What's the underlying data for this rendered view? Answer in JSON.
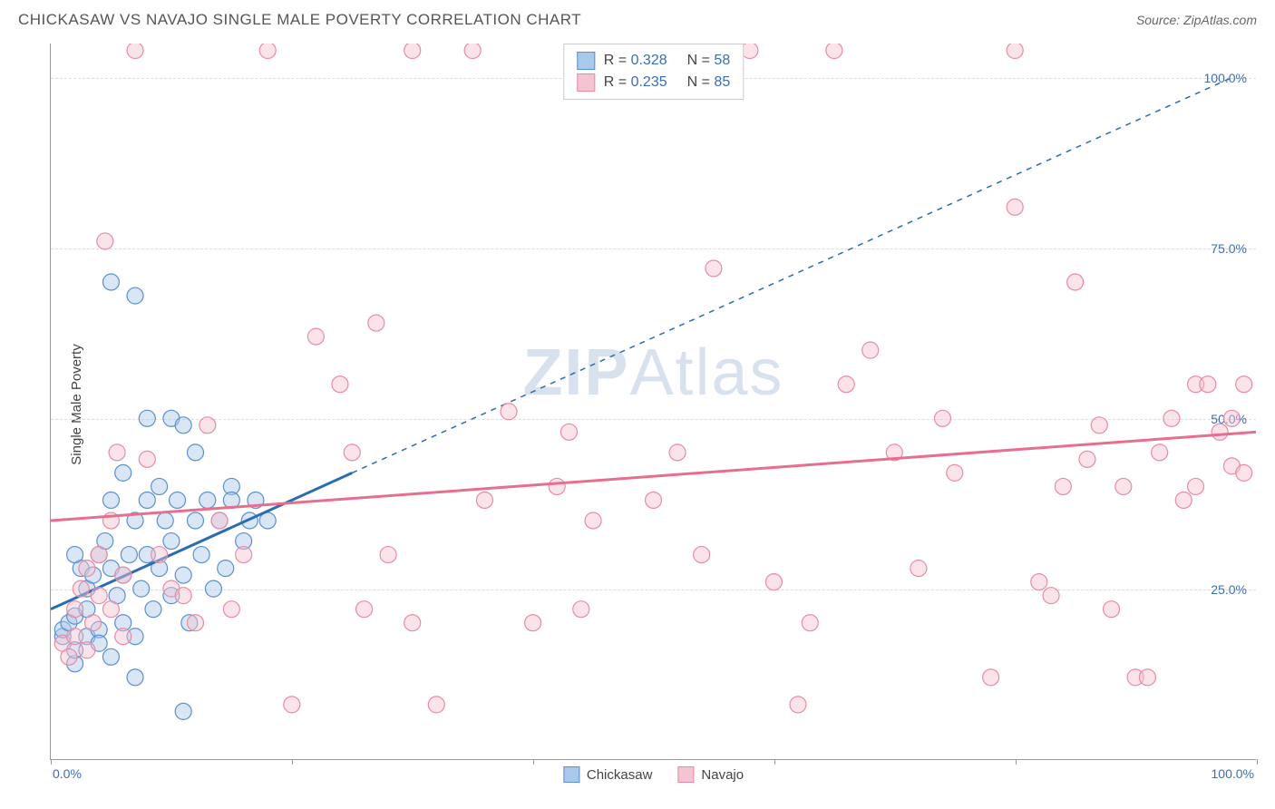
{
  "header": {
    "title": "CHICKASAW VS NAVAJO SINGLE MALE POVERTY CORRELATION CHART",
    "source": "Source: ZipAtlas.com"
  },
  "chart": {
    "type": "scatter",
    "y_label": "Single Male Poverty",
    "xlim": [
      0,
      100
    ],
    "ylim": [
      0,
      105
    ],
    "x_tick_positions": [
      0,
      20,
      40,
      60,
      80,
      100
    ],
    "y_ticks": [
      {
        "pos": 25,
        "label": "25.0%"
      },
      {
        "pos": 50,
        "label": "50.0%"
      },
      {
        "pos": 75,
        "label": "75.0%"
      },
      {
        "pos": 100,
        "label": "100.0%"
      }
    ],
    "x_axis_labels": {
      "left": "0.0%",
      "right": "100.0%"
    },
    "background_color": "#ffffff",
    "grid_color": "#dddddd",
    "border_color": "#999999",
    "marker_radius": 9,
    "marker_opacity": 0.45,
    "series": [
      {
        "name": "Chickasaw",
        "fill": "#a8c8ec",
        "stroke": "#5b8fd0",
        "R": "0.328",
        "N": "58",
        "trend_solid": {
          "x1": 0,
          "y1": 22,
          "x2": 25,
          "y2": 42
        },
        "trend_dashed": {
          "x1": 25,
          "y1": 42,
          "x2": 98,
          "y2": 100
        },
        "trend_color": "#2b6cb0",
        "points": [
          [
            1,
            18
          ],
          [
            1,
            19
          ],
          [
            1.5,
            20
          ],
          [
            2,
            21
          ],
          [
            2,
            14
          ],
          [
            2,
            16
          ],
          [
            2.5,
            28
          ],
          [
            2,
            30
          ],
          [
            3,
            22
          ],
          [
            3,
            18
          ],
          [
            3,
            25
          ],
          [
            3.5,
            27
          ],
          [
            4,
            19
          ],
          [
            4,
            17
          ],
          [
            4,
            30
          ],
          [
            4.5,
            32
          ],
          [
            5,
            15
          ],
          [
            5,
            28
          ],
          [
            5,
            38
          ],
          [
            5,
            70
          ],
          [
            5.5,
            24
          ],
          [
            6,
            20
          ],
          [
            6,
            27
          ],
          [
            6,
            42
          ],
          [
            6.5,
            30
          ],
          [
            7,
            35
          ],
          [
            7,
            18
          ],
          [
            7,
            68
          ],
          [
            7.5,
            25
          ],
          [
            8,
            30
          ],
          [
            8,
            38
          ],
          [
            8,
            50
          ],
          [
            8.5,
            22
          ],
          [
            9,
            28
          ],
          [
            9,
            40
          ],
          [
            9.5,
            35
          ],
          [
            10,
            50
          ],
          [
            10,
            32
          ],
          [
            10,
            24
          ],
          [
            10.5,
            38
          ],
          [
            11,
            49
          ],
          [
            11,
            27
          ],
          [
            11.5,
            20
          ],
          [
            12,
            35
          ],
          [
            12,
            45
          ],
          [
            12.5,
            30
          ],
          [
            13,
            38
          ],
          [
            13.5,
            25
          ],
          [
            14,
            35
          ],
          [
            14.5,
            28
          ],
          [
            15,
            40
          ],
          [
            15,
            38
          ],
          [
            16,
            32
          ],
          [
            16.5,
            35
          ],
          [
            17,
            38
          ],
          [
            18,
            35
          ],
          [
            11,
            7
          ],
          [
            7,
            12
          ]
        ]
      },
      {
        "name": "Navajo",
        "fill": "#f5c4d1",
        "stroke": "#e88ba5",
        "R": "0.235",
        "N": "85",
        "trend_solid": {
          "x1": 0,
          "y1": 35,
          "x2": 100,
          "y2": 48
        },
        "trend_color": "#e86e8f",
        "points": [
          [
            1,
            17
          ],
          [
            1.5,
            15
          ],
          [
            2,
            18
          ],
          [
            2,
            22
          ],
          [
            2.5,
            25
          ],
          [
            3,
            16
          ],
          [
            3,
            28
          ],
          [
            3.5,
            20
          ],
          [
            4,
            30
          ],
          [
            4,
            24
          ],
          [
            4.5,
            76
          ],
          [
            5,
            35
          ],
          [
            5,
            22
          ],
          [
            5.5,
            45
          ],
          [
            6,
            18
          ],
          [
            6,
            27
          ],
          [
            7,
            104
          ],
          [
            8,
            44
          ],
          [
            9,
            30
          ],
          [
            10,
            25
          ],
          [
            11,
            24
          ],
          [
            12,
            20
          ],
          [
            13,
            49
          ],
          [
            14,
            35
          ],
          [
            15,
            22
          ],
          [
            16,
            30
          ],
          [
            18,
            104
          ],
          [
            20,
            8
          ],
          [
            22,
            62
          ],
          [
            24,
            55
          ],
          [
            25,
            45
          ],
          [
            26,
            22
          ],
          [
            27,
            64
          ],
          [
            28,
            30
          ],
          [
            30,
            104
          ],
          [
            30,
            20
          ],
          [
            32,
            8
          ],
          [
            35,
            104
          ],
          [
            36,
            38
          ],
          [
            38,
            51
          ],
          [
            40,
            20
          ],
          [
            42,
            40
          ],
          [
            43,
            48
          ],
          [
            44,
            22
          ],
          [
            45,
            35
          ],
          [
            48,
            104
          ],
          [
            50,
            38
          ],
          [
            52,
            45
          ],
          [
            54,
            30
          ],
          [
            55,
            72
          ],
          [
            58,
            104
          ],
          [
            60,
            26
          ],
          [
            62,
            8
          ],
          [
            63,
            20
          ],
          [
            65,
            104
          ],
          [
            66,
            55
          ],
          [
            68,
            60
          ],
          [
            70,
            45
          ],
          [
            72,
            28
          ],
          [
            74,
            50
          ],
          [
            75,
            42
          ],
          [
            78,
            12
          ],
          [
            80,
            104
          ],
          [
            80,
            81
          ],
          [
            82,
            26
          ],
          [
            83,
            24
          ],
          [
            84,
            40
          ],
          [
            85,
            70
          ],
          [
            86,
            44
          ],
          [
            87,
            49
          ],
          [
            88,
            22
          ],
          [
            89,
            40
          ],
          [
            90,
            12
          ],
          [
            91,
            12
          ],
          [
            92,
            45
          ],
          [
            93,
            50
          ],
          [
            94,
            38
          ],
          [
            95,
            55
          ],
          [
            95,
            40
          ],
          [
            96,
            55
          ],
          [
            97,
            48
          ],
          [
            98,
            43
          ],
          [
            98,
            50
          ],
          [
            99,
            42
          ],
          [
            99,
            55
          ]
        ]
      }
    ],
    "watermark": {
      "bold": "ZIP",
      "light": "Atlas"
    },
    "stats_box": {
      "rows": [
        {
          "swatch_fill": "#a8c8ec",
          "swatch_stroke": "#5b8fd0",
          "r_label": "R = ",
          "r_val": "0.328",
          "n_label": "N = ",
          "n_val": "58"
        },
        {
          "swatch_fill": "#f5c4d1",
          "swatch_stroke": "#e88ba5",
          "r_label": "R = ",
          "r_val": "0.235",
          "n_label": "N = ",
          "n_val": "85"
        }
      ]
    },
    "legend_bottom": [
      {
        "swatch_fill": "#a8c8ec",
        "swatch_stroke": "#5b8fd0",
        "label": "Chickasaw"
      },
      {
        "swatch_fill": "#f5c4d1",
        "swatch_stroke": "#e88ba5",
        "label": "Navajo"
      }
    ]
  }
}
